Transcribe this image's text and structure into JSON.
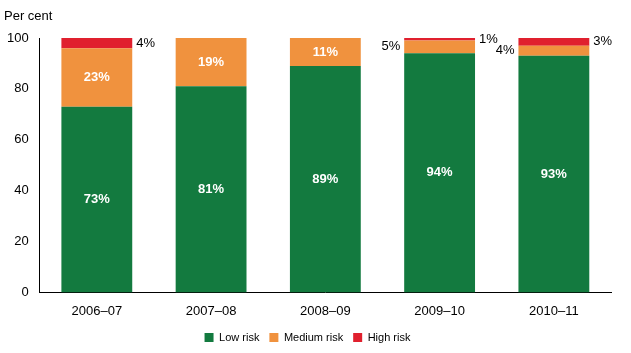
{
  "chart_data": {
    "type": "bar",
    "stacked": true,
    "y_label": "Per cent",
    "categories": [
      "2006–07",
      "2007–08",
      "2008–09",
      "2009–10",
      "2010–11"
    ],
    "series": [
      {
        "name": "Low risk",
        "color": "#137a3f",
        "values": [
          73,
          81,
          89,
          94,
          93
        ],
        "value_labels": [
          "73%",
          "81%",
          "89%",
          "94%",
          "93%"
        ]
      },
      {
        "name": "Medium risk",
        "color": "#f0923e",
        "values": [
          23,
          19,
          11,
          5,
          4
        ],
        "value_labels": [
          "23%",
          "19%",
          "11%",
          "5%",
          "4%"
        ]
      },
      {
        "name": "High risk",
        "color": "#e0202e",
        "values": [
          4,
          null,
          null,
          1,
          3
        ],
        "value_labels": [
          "4%",
          null,
          null,
          "1%",
          "3%"
        ]
      }
    ],
    "ylim": [
      0,
      100
    ],
    "yticks": [
      0,
      20,
      40,
      60,
      80,
      100
    ],
    "grid": false,
    "legend": "bottom",
    "data_labels": true
  }
}
